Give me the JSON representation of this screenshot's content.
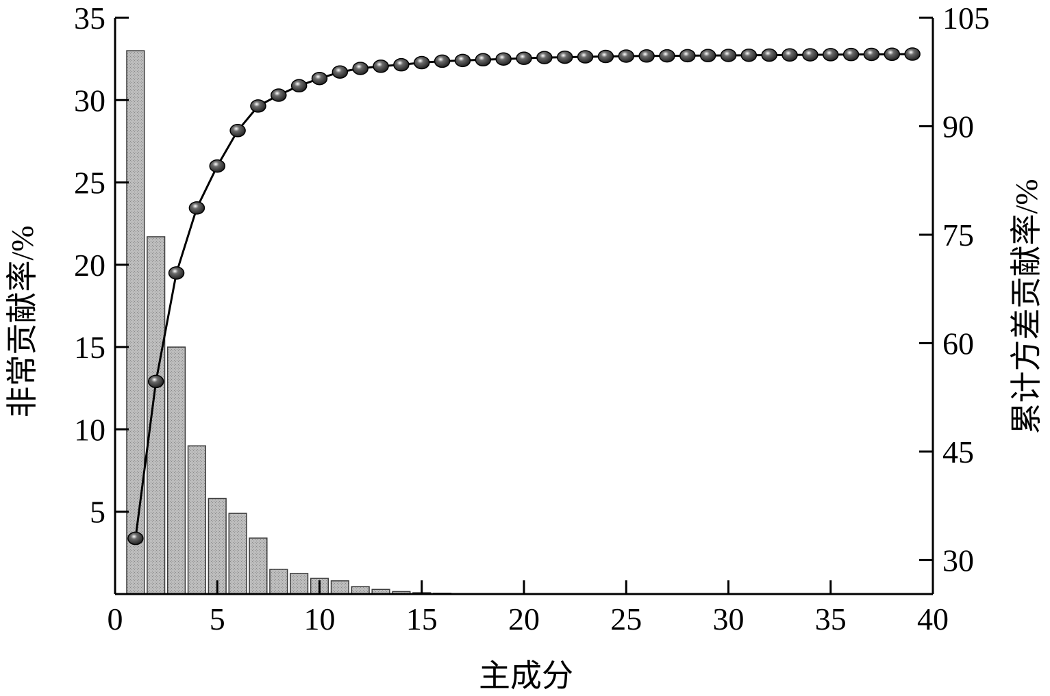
{
  "chart_data": {
    "type": "bar",
    "xlabel": "主成分",
    "ylabel_left": "非常贡献率/%",
    "ylabel_right": "累计方差贡献率/%",
    "x_ticks": [
      "0",
      "5",
      "10",
      "15",
      "20",
      "25",
      "30",
      "35",
      "40"
    ],
    "y_left_ticks": [
      "5",
      "10",
      "15",
      "20",
      "25",
      "30",
      "35"
    ],
    "y_right_ticks": [
      "30",
      "45",
      "60",
      "75",
      "90",
      "105"
    ],
    "xlim": [
      0,
      40
    ],
    "ylim_left": [
      0,
      35
    ],
    "ylim_right": [
      25.3,
      105
    ],
    "grid": false,
    "colors": {
      "bar_fill": "#bdbdbd",
      "bar_stroke": "#3a3a3a",
      "line": "#000000",
      "marker": "#1a1a1a"
    },
    "series": [
      {
        "type": "bar",
        "axis": "left",
        "x": [
          1,
          2,
          3,
          4,
          5,
          6,
          7,
          8,
          9,
          10,
          11,
          12,
          13,
          14,
          15,
          16,
          17,
          18,
          19,
          20,
          21,
          22,
          23,
          24,
          25,
          26,
          27,
          28,
          29,
          30,
          31,
          32,
          33,
          34,
          35,
          36,
          37,
          38,
          39
        ],
        "values": [
          33.0,
          21.7,
          15.0,
          9.0,
          5.8,
          4.9,
          3.4,
          1.5,
          1.25,
          0.95,
          0.8,
          0.45,
          0.28,
          0.15,
          0.08,
          0.05,
          0.03,
          0.02,
          0,
          0,
          0,
          0,
          0,
          0,
          0,
          0,
          0,
          0,
          0,
          0,
          0,
          0,
          0,
          0,
          0,
          0,
          0,
          0,
          0
        ]
      },
      {
        "type": "line",
        "axis": "right",
        "x": [
          1,
          2,
          3,
          4,
          5,
          6,
          7,
          8,
          9,
          10,
          11,
          12,
          13,
          14,
          15,
          16,
          17,
          18,
          19,
          20,
          21,
          22,
          23,
          24,
          25,
          26,
          27,
          28,
          29,
          30,
          31,
          32,
          33,
          34,
          35,
          36,
          37,
          38,
          39
        ],
        "values": [
          33.0,
          54.7,
          69.7,
          78.7,
          84.5,
          89.4,
          92.8,
          94.3,
          95.6,
          96.6,
          97.5,
          98.0,
          98.3,
          98.5,
          98.8,
          99.0,
          99.1,
          99.2,
          99.3,
          99.4,
          99.5,
          99.55,
          99.6,
          99.65,
          99.7,
          99.72,
          99.74,
          99.76,
          99.78,
          99.8,
          99.82,
          99.84,
          99.86,
          99.88,
          99.9,
          99.92,
          99.94,
          99.96,
          99.98
        ]
      }
    ]
  }
}
